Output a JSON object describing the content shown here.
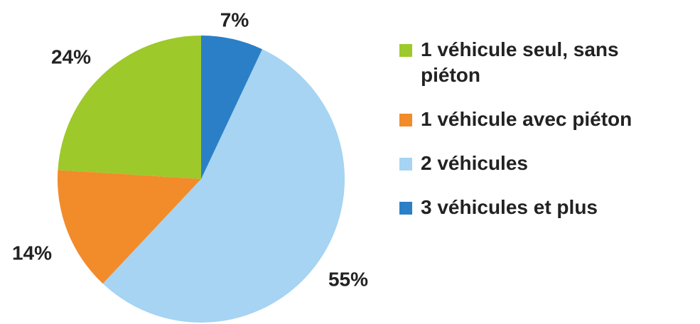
{
  "chart_data": {
    "type": "pie",
    "categories": [
      "1 véhicule seul, sans piéton",
      "1 véhicule avec piéton",
      "2 véhicules",
      "3 véhicules et plus"
    ],
    "values": [
      24,
      14,
      55,
      7
    ],
    "value_labels": [
      "24%",
      "14%",
      "55%",
      "7%"
    ],
    "colors": [
      "#9dc92a",
      "#f28b2a",
      "#a6d4f2",
      "#2a7fc7"
    ],
    "legend": "right"
  }
}
